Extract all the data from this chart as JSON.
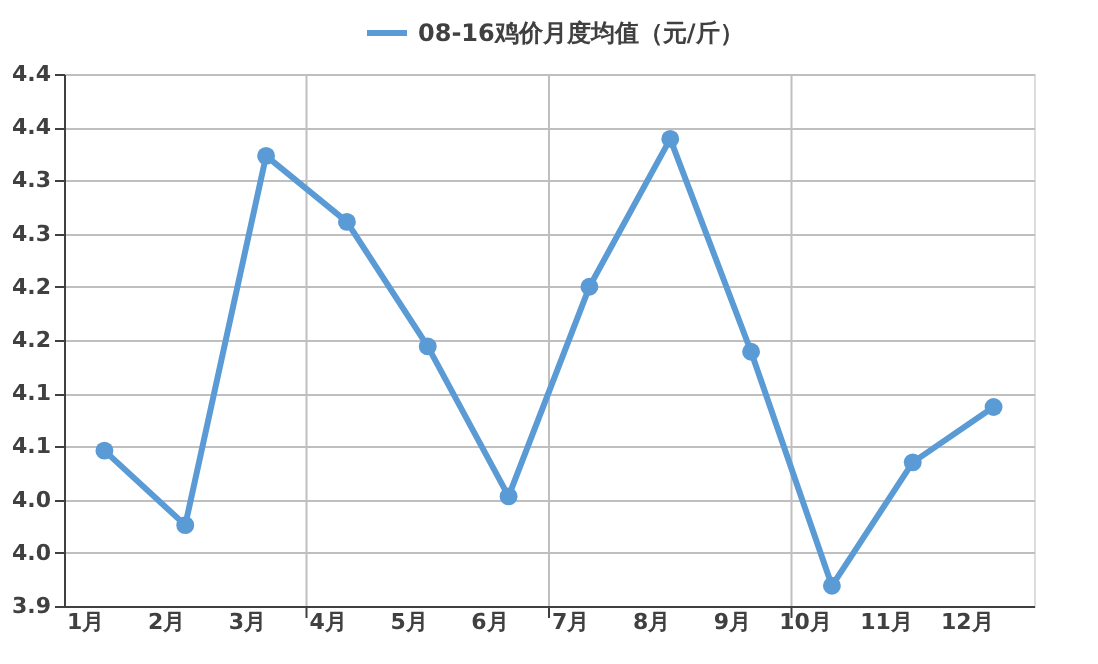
{
  "chart_data": {
    "type": "line",
    "categories": [
      "1月",
      "2月",
      "3月",
      "4月",
      "5月",
      "6月",
      "7月",
      "8月",
      "9月",
      "10月",
      "11月",
      "12月"
    ],
    "series": [
      {
        "name": "08-16鸡价月度均值（元/斤）",
        "color": "#5b9bd5",
        "values": [
          4.046,
          3.976,
          4.323,
          4.261,
          4.144,
          4.003,
          4.2,
          4.339,
          4.139,
          3.919,
          4.035,
          4.087
        ]
      }
    ],
    "ylim": [
      3.9,
      4.4
    ],
    "yticks": [
      {
        "value": 3.9,
        "label": "3.9"
      },
      {
        "value": 3.95,
        "label": "4.0"
      },
      {
        "value": 4.0,
        "label": "4.0"
      },
      {
        "value": 4.05,
        "label": "4.1"
      },
      {
        "value": 4.1,
        "label": "4.1"
      },
      {
        "value": 4.15,
        "label": "4.2"
      },
      {
        "value": 4.2,
        "label": "4.2"
      },
      {
        "value": 4.25,
        "label": "4.3"
      },
      {
        "value": 4.3,
        "label": "4.3"
      },
      {
        "value": 4.35,
        "label": "4.4"
      },
      {
        "value": 4.4,
        "label": "4.4"
      }
    ],
    "grid": true,
    "legend": "top",
    "marker": "circle",
    "line_style": "solid"
  }
}
